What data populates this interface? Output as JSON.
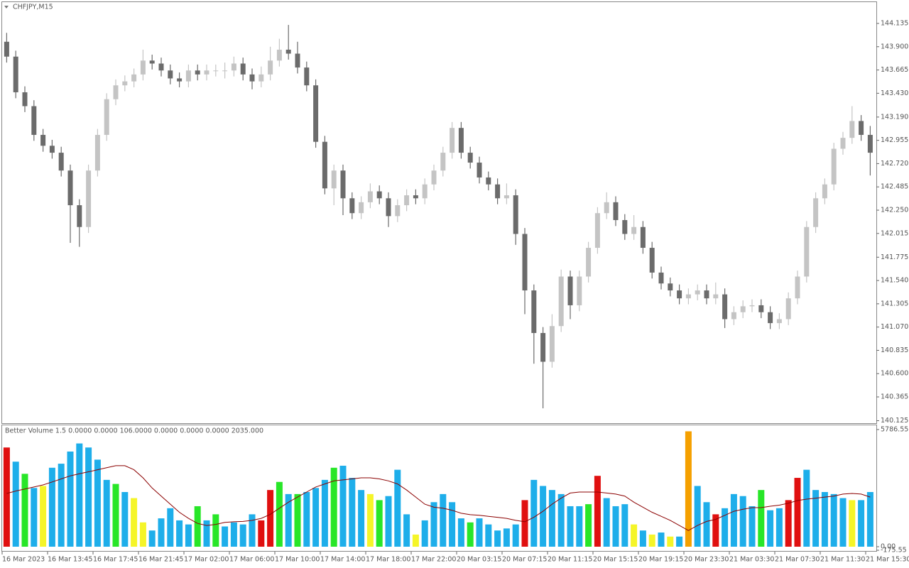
{
  "chart_data": [
    {
      "type": "candlestick",
      "title": "CHFJPY,M15",
      "categories": [
        "16 Mar 2023",
        null,
        null,
        null,
        null,
        "16 Mar 13:45",
        null,
        null,
        null,
        null,
        "16 Mar 17:45",
        null,
        null,
        null,
        null,
        "16 Mar 21:45",
        null,
        null,
        null,
        null,
        "17 Mar 02:00",
        null,
        null,
        null,
        null,
        "17 Mar 06:00",
        null,
        null,
        null,
        null,
        "17 Mar 10:00",
        null,
        null,
        null,
        null,
        "17 Mar 14:00",
        null,
        null,
        null,
        null,
        "17 Mar 18:00",
        null,
        null,
        null,
        null,
        "17 Mar 22:00",
        null,
        null,
        null,
        null,
        "20 Mar 03:15",
        null,
        null,
        null,
        null,
        "20 Mar 07:15",
        null,
        null,
        null,
        null,
        "20 Mar 11:15",
        null,
        null,
        null,
        null,
        "20 Mar 15:15",
        null,
        null,
        null,
        null,
        "20 Mar 19:15",
        null,
        null,
        null,
        null,
        "20 Mar 23:30",
        null,
        null,
        null,
        null,
        "21 Mar 03:30",
        null,
        null,
        null,
        null,
        "21 Mar 07:30",
        null,
        null,
        null,
        null,
        "21 Mar 11:30",
        null,
        null,
        null,
        null,
        "21 Mar 15:30"
      ],
      "open": [
        143.95,
        143.8,
        143.44,
        143.3,
        143.01,
        142.9,
        142.83,
        142.65,
        142.3,
        142.08,
        142.65,
        143.01,
        143.37,
        143.51,
        143.55,
        143.62,
        143.76,
        143.73,
        143.66,
        143.58,
        143.55,
        143.66,
        143.62,
        143.66,
        143.66,
        143.66,
        143.73,
        143.62,
        143.55,
        143.62,
        143.76,
        143.87,
        143.83,
        143.69,
        143.51,
        142.94,
        142.47,
        142.65,
        142.37,
        142.22,
        142.33,
        142.44,
        142.37,
        142.19,
        142.3,
        142.4,
        142.37,
        142.51,
        142.65,
        142.83,
        143.08,
        142.83,
        142.73,
        142.58,
        142.51,
        142.37,
        142.4,
        142.01,
        141.44,
        141.01,
        140.72,
        141.08,
        141.58,
        141.29,
        141.58,
        141.87,
        142.22,
        142.33,
        142.15,
        142.01,
        142.08,
        141.87,
        141.62,
        141.51,
        141.44,
        141.36,
        141.4,
        141.44,
        141.36,
        141.4,
        141.15,
        141.22,
        141.28,
        141.29,
        141.22,
        141.11,
        141.15,
        141.36,
        141.58,
        142.08,
        142.37,
        142.51,
        142.87,
        142.98,
        143.15,
        143.01
      ],
      "high": [
        144.04,
        143.86,
        143.5,
        143.36,
        143.07,
        142.96,
        142.89,
        142.71,
        142.36,
        142.71,
        143.07,
        143.43,
        143.57,
        143.61,
        143.68,
        143.87,
        143.82,
        143.79,
        143.72,
        143.64,
        143.72,
        143.72,
        143.72,
        143.72,
        143.74,
        143.8,
        143.79,
        143.68,
        143.7,
        143.9,
        143.98,
        144.12,
        143.95,
        143.75,
        143.57,
        143.0,
        142.71,
        142.71,
        142.43,
        142.39,
        142.52,
        142.5,
        142.43,
        142.36,
        142.46,
        142.46,
        142.57,
        142.71,
        142.89,
        143.14,
        143.14,
        142.89,
        142.79,
        142.64,
        142.57,
        142.52,
        142.46,
        142.07,
        141.5,
        141.07,
        141.2,
        141.65,
        141.64,
        141.64,
        141.93,
        142.28,
        142.43,
        142.39,
        142.21,
        142.2,
        142.14,
        141.93,
        141.68,
        141.57,
        141.5,
        141.46,
        141.5,
        141.5,
        141.52,
        141.46,
        141.28,
        141.34,
        141.35,
        141.35,
        141.28,
        141.21,
        141.42,
        141.64,
        142.14,
        142.43,
        142.57,
        142.93,
        143.04,
        143.3,
        143.21,
        143.1
      ],
      "low": [
        143.74,
        143.38,
        143.24,
        142.95,
        142.84,
        142.77,
        142.59,
        141.92,
        141.88,
        142.02,
        142.59,
        142.95,
        143.31,
        143.45,
        143.49,
        143.56,
        143.67,
        143.6,
        143.52,
        143.49,
        143.49,
        143.56,
        143.56,
        143.6,
        143.58,
        143.6,
        143.56,
        143.47,
        143.49,
        143.56,
        143.7,
        143.77,
        143.63,
        143.45,
        142.88,
        142.41,
        142.3,
        142.2,
        142.16,
        142.16,
        142.27,
        142.31,
        142.08,
        142.13,
        142.24,
        142.31,
        142.31,
        142.45,
        142.59,
        142.77,
        142.77,
        142.67,
        142.52,
        142.45,
        142.31,
        142.31,
        141.9,
        141.2,
        140.7,
        140.25,
        140.66,
        141.02,
        141.15,
        141.23,
        141.52,
        141.81,
        142.16,
        142.09,
        141.95,
        141.95,
        141.81,
        141.56,
        141.45,
        141.38,
        141.3,
        141.3,
        141.34,
        141.3,
        141.3,
        141.06,
        141.09,
        141.16,
        141.22,
        141.16,
        141.05,
        141.05,
        141.09,
        141.3,
        141.52,
        142.02,
        142.31,
        142.45,
        142.81,
        142.92,
        142.95,
        142.6
      ],
      "close": [
        143.8,
        143.44,
        143.3,
        143.01,
        142.9,
        142.83,
        142.65,
        142.3,
        142.08,
        142.65,
        143.01,
        143.37,
        143.51,
        143.55,
        143.62,
        143.76,
        143.73,
        143.66,
        143.58,
        143.55,
        143.66,
        143.62,
        143.66,
        143.66,
        143.66,
        143.73,
        143.62,
        143.55,
        143.62,
        143.76,
        143.87,
        143.83,
        143.69,
        143.51,
        142.94,
        142.47,
        142.65,
        142.37,
        142.22,
        142.33,
        142.44,
        142.37,
        142.19,
        142.3,
        142.4,
        142.37,
        142.51,
        142.65,
        142.83,
        143.08,
        142.83,
        142.73,
        142.58,
        142.51,
        142.37,
        142.4,
        142.01,
        141.44,
        141.01,
        140.72,
        141.08,
        141.58,
        141.29,
        141.58,
        141.87,
        142.22,
        142.33,
        142.15,
        142.01,
        142.08,
        141.87,
        141.62,
        141.51,
        141.44,
        141.36,
        141.4,
        141.44,
        141.36,
        141.4,
        141.15,
        141.22,
        141.28,
        141.29,
        141.22,
        141.11,
        141.15,
        141.36,
        141.58,
        142.08,
        142.37,
        142.51,
        142.87,
        142.98,
        143.15,
        143.01,
        142.83
      ],
      "up_color": "#c4c4c4",
      "down_color": "#6b6b6b",
      "ylim": [
        140.1,
        144.35
      ],
      "yticks": [
        144.135,
        {
          "value": 143.9,
          "label": "143.900"
        },
        143.665,
        {
          "value": 143.43,
          "label": "143.430"
        },
        {
          "value": 143.19,
          "label": "143.190"
        },
        142.955,
        {
          "value": 142.72,
          "label": "142.720"
        },
        142.485,
        {
          "value": 142.25,
          "label": "142.250"
        },
        142.015,
        141.775,
        {
          "value": 141.54,
          "label": "141.540"
        },
        141.305,
        {
          "value": 141.07,
          "label": "141.070"
        },
        140.835,
        {
          "value": 140.6,
          "label": "140.600"
        },
        140.365,
        140.125
      ],
      "grid": false
    },
    {
      "type": "bar",
      "title": "Better Volume 1.5 0.0000 0.0000 106.0000 0.0000 0.0000 0.0000 2035.000",
      "values": [
        4900,
        4200,
        3600,
        2900,
        3000,
        3900,
        4100,
        4700,
        5100,
        4900,
        4300,
        3300,
        3100,
        2700,
        2400,
        1200,
        800,
        1400,
        1900,
        1300,
        1100,
        2000,
        1300,
        1600,
        1000,
        1200,
        1100,
        1600,
        1300,
        2800,
        3200,
        2600,
        2600,
        2700,
        2900,
        3300,
        3900,
        4000,
        3400,
        2800,
        2600,
        2300,
        2500,
        3800,
        1600,
        600,
        1300,
        2200,
        2600,
        2200,
        1400,
        1200,
        1400,
        1100,
        800,
        900,
        1100,
        2300,
        3300,
        3000,
        2800,
        2600,
        2000,
        2000,
        2100,
        3500,
        2400,
        2000,
        2100,
        1100,
        800,
        600,
        700,
        500,
        500,
        5700,
        3000,
        2200,
        1600,
        1900,
        2600,
        2500,
        2000,
        2800,
        1800,
        1900,
        2300,
        3400,
        3800,
        2800,
        2700,
        2600,
        2400,
        2300,
        2300,
        2700
      ],
      "colors": [
        "#e01010",
        "#1eaeea",
        "#28e628",
        "#1eaeea",
        "#f5f528",
        "#1eaeea",
        "#1eaeea",
        "#1eaeea",
        "#1eaeea",
        "#1eaeea",
        "#1eaeea",
        "#1eaeea",
        "#28e628",
        "#1eaeea",
        "#f5f528",
        "#f5f528",
        "#1eaeea",
        "#1eaeea",
        "#1eaeea",
        "#1eaeea",
        "#1eaeea",
        "#28e628",
        "#1eaeea",
        "#28e628",
        "#1eaeea",
        "#1eaeea",
        "#1eaeea",
        "#1eaeea",
        "#e01010",
        "#e01010",
        "#28e628",
        "#1eaeea",
        "#28e628",
        "#1eaeea",
        "#1eaeea",
        "#1eaeea",
        "#28e628",
        "#1eaeea",
        "#1eaeea",
        "#1eaeea",
        "#f5f528",
        "#28e628",
        "#1eaeea",
        "#1eaeea",
        "#1eaeea",
        "#f5f528",
        "#1eaeea",
        "#1eaeea",
        "#1eaeea",
        "#1eaeea",
        "#1eaeea",
        "#28e628",
        "#1eaeea",
        "#1eaeea",
        "#1eaeea",
        "#1eaeea",
        "#1eaeea",
        "#e01010",
        "#1eaeea",
        "#1eaeea",
        "#1eaeea",
        "#1eaeea",
        "#1eaeea",
        "#1eaeea",
        "#28e628",
        "#e01010",
        "#1eaeea",
        "#1eaeea",
        "#1eaeea",
        "#f5f528",
        "#1eaeea",
        "#f5f528",
        "#1eaeea",
        "#f5f528",
        "#1eaeea",
        "#f5a000",
        "#1eaeea",
        "#1eaeea",
        "#e01010",
        "#1eaeea",
        "#1eaeea",
        "#1eaeea",
        "#1eaeea",
        "#28e628",
        "#1eaeea",
        "#1eaeea",
        "#e01010",
        "#e01010",
        "#1eaeea",
        "#1eaeea",
        "#1eaeea",
        "#1eaeea",
        "#1eaeea",
        "#f5f528",
        "#1eaeea",
        "#1eaeea"
      ],
      "ma": {
        "color": "#8b0000",
        "values": [
          2630,
          2750,
          2850,
          2950,
          3050,
          3200,
          3350,
          3500,
          3600,
          3700,
          3800,
          3900,
          4000,
          4000,
          3800,
          3400,
          2900,
          2500,
          2100,
          1700,
          1400,
          1150,
          1050,
          1100,
          1200,
          1230,
          1250,
          1300,
          1400,
          1600,
          1900,
          2200,
          2450,
          2700,
          2950,
          3100,
          3250,
          3300,
          3350,
          3400,
          3400,
          3350,
          3250,
          3100,
          2800,
          2450,
          2100,
          1950,
          1900,
          1800,
          1650,
          1580,
          1550,
          1500,
          1450,
          1400,
          1300,
          1230,
          1450,
          1750,
          2100,
          2400,
          2650,
          2700,
          2700,
          2700,
          2650,
          2600,
          2500,
          2200,
          1950,
          1700,
          1500,
          1300,
          1050,
          800,
          1050,
          1250,
          1350,
          1550,
          1750,
          1850,
          1930,
          1930,
          2000,
          2050,
          2150,
          2280,
          2350,
          2400,
          2450,
          2500,
          2600,
          2630,
          2600,
          2450
        ]
      },
      "ylim": [
        -175.55,
        5786.55
      ],
      "yticks": [
        5786.55,
        {
          "value": 0,
          "label": "0.00"
        },
        -175.55
      ]
    }
  ]
}
